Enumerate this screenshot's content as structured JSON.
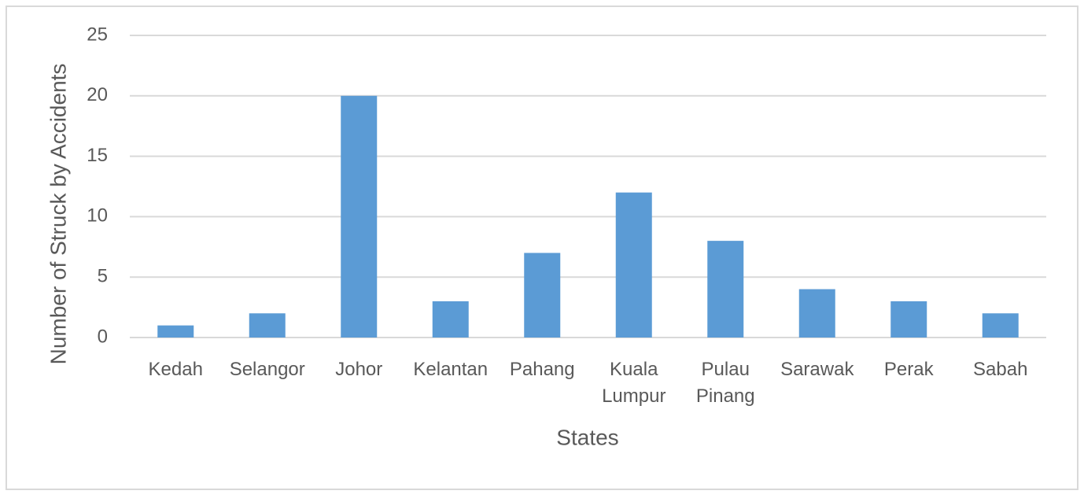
{
  "chart_data": {
    "type": "bar",
    "x_label": "States",
    "y_label": "Number of Struck by Accidents",
    "categories": [
      "Kedah",
      "Selangor",
      "Johor",
      "Kelantan",
      "Pahang",
      "Kuala Lumpur",
      "Pulau Pinang",
      "Sarawak",
      "Perak",
      "Sabah"
    ],
    "values": [
      1,
      2,
      20,
      3,
      7,
      12,
      8,
      4,
      3,
      2
    ],
    "color": "#5b9bd5",
    "ylim": [
      0,
      25
    ],
    "yticks": [
      0,
      5,
      10,
      15,
      20,
      25
    ],
    "grid": true
  }
}
